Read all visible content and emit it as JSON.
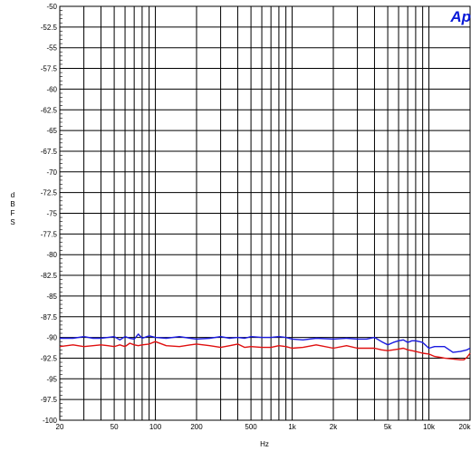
{
  "chart_data": {
    "type": "line",
    "title": "",
    "xlabel": "Hz",
    "ylabel": "d B F S",
    "xscale": "log",
    "xlim": [
      20,
      20000
    ],
    "ylim": [
      -100,
      -50
    ],
    "grid": true,
    "logo_text": "Ap",
    "x_ticks": [
      {
        "value": 20,
        "label": "20"
      },
      {
        "value": 50,
        "label": "50"
      },
      {
        "value": 100,
        "label": "100"
      },
      {
        "value": 200,
        "label": "200"
      },
      {
        "value": 500,
        "label": "500"
      },
      {
        "value": 1000,
        "label": "1k"
      },
      {
        "value": 2000,
        "label": "2k"
      },
      {
        "value": 5000,
        "label": "5k"
      },
      {
        "value": 10000,
        "label": "10k"
      },
      {
        "value": 20000,
        "label": "20k"
      }
    ],
    "y_ticks": [
      {
        "value": -50,
        "label": "-50"
      },
      {
        "value": -52.5,
        "label": "-52.5"
      },
      {
        "value": -55,
        "label": "-55"
      },
      {
        "value": -57.5,
        "label": "-57.5"
      },
      {
        "value": -60,
        "label": "-60"
      },
      {
        "value": -62.5,
        "label": "-62.5"
      },
      {
        "value": -65,
        "label": "-65"
      },
      {
        "value": -67.5,
        "label": "-67.5"
      },
      {
        "value": -70,
        "label": "-70"
      },
      {
        "value": -72.5,
        "label": "-72.5"
      },
      {
        "value": -75,
        "label": "-75"
      },
      {
        "value": -77.5,
        "label": "-77.5"
      },
      {
        "value": -80,
        "label": "-80"
      },
      {
        "value": -82.5,
        "label": "-82.5"
      },
      {
        "value": -85,
        "label": "-85"
      },
      {
        "value": -87.5,
        "label": "-87.5"
      },
      {
        "value": -90,
        "label": "-90"
      },
      {
        "value": -92.5,
        "label": "-92.5"
      },
      {
        "value": -95,
        "label": "-95"
      },
      {
        "value": -97.5,
        "label": "-97.5"
      },
      {
        "value": -100,
        "label": "-100"
      }
    ],
    "series": [
      {
        "color": "#1a1adf",
        "x": [
          20,
          25,
          30,
          35,
          40,
          45,
          50,
          55,
          60,
          65,
          70,
          75,
          80,
          90,
          100,
          120,
          150,
          180,
          200,
          250,
          300,
          350,
          400,
          450,
          500,
          600,
          700,
          800,
          900,
          1000,
          1200,
          1500,
          2000,
          2500,
          3000,
          3500,
          4000,
          4500,
          5000,
          5500,
          6000,
          6500,
          7000,
          7500,
          8000,
          9000,
          10000,
          11000,
          12000,
          13000,
          15000,
          17000,
          18000,
          19000,
          20000
        ],
        "y": [
          -90.1,
          -90.1,
          -89.9,
          -90.1,
          -90.1,
          -90.0,
          -89.9,
          -90.3,
          -89.9,
          -90.1,
          -90.2,
          -89.6,
          -90.1,
          -89.8,
          -90.0,
          -90.1,
          -89.9,
          -90.1,
          -90.2,
          -90.1,
          -89.9,
          -90.1,
          -90.0,
          -90.1,
          -89.9,
          -90.0,
          -90.0,
          -89.9,
          -90.0,
          -90.2,
          -90.3,
          -90.1,
          -90.2,
          -90.1,
          -90.2,
          -90.2,
          -90.0,
          -90.5,
          -90.9,
          -90.6,
          -90.4,
          -90.3,
          -90.6,
          -90.4,
          -90.4,
          -90.6,
          -91.3,
          -91.1,
          -91.1,
          -91.1,
          -91.8,
          -91.7,
          -91.6,
          -91.5,
          -91.3
        ]
      },
      {
        "color": "#e01010",
        "x": [
          20,
          25,
          30,
          35,
          40,
          45,
          50,
          55,
          60,
          65,
          70,
          75,
          80,
          90,
          100,
          120,
          150,
          180,
          200,
          250,
          300,
          350,
          400,
          450,
          500,
          600,
          700,
          800,
          900,
          1000,
          1200,
          1500,
          2000,
          2500,
          3000,
          3500,
          4000,
          4500,
          5000,
          5500,
          6000,
          6500,
          7000,
          7500,
          8000,
          9000,
          10000,
          11000,
          12000,
          13000,
          15000,
          17000,
          18000,
          19000,
          20000
        ],
        "y": [
          -91.1,
          -90.9,
          -91.1,
          -91.0,
          -90.9,
          -91.0,
          -91.1,
          -90.9,
          -91.1,
          -90.7,
          -90.9,
          -91.0,
          -90.9,
          -90.8,
          -90.5,
          -91.0,
          -91.1,
          -90.9,
          -90.8,
          -91.0,
          -91.2,
          -91.0,
          -90.8,
          -91.2,
          -91.1,
          -91.2,
          -91.2,
          -91.0,
          -91.1,
          -91.3,
          -91.2,
          -90.9,
          -91.3,
          -91.0,
          -91.3,
          -91.3,
          -91.3,
          -91.5,
          -91.6,
          -91.5,
          -91.4,
          -91.3,
          -91.5,
          -91.6,
          -91.7,
          -91.9,
          -92.0,
          -92.3,
          -92.4,
          -92.5,
          -92.6,
          -92.7,
          -92.7,
          -92.4,
          -91.9
        ]
      }
    ]
  }
}
